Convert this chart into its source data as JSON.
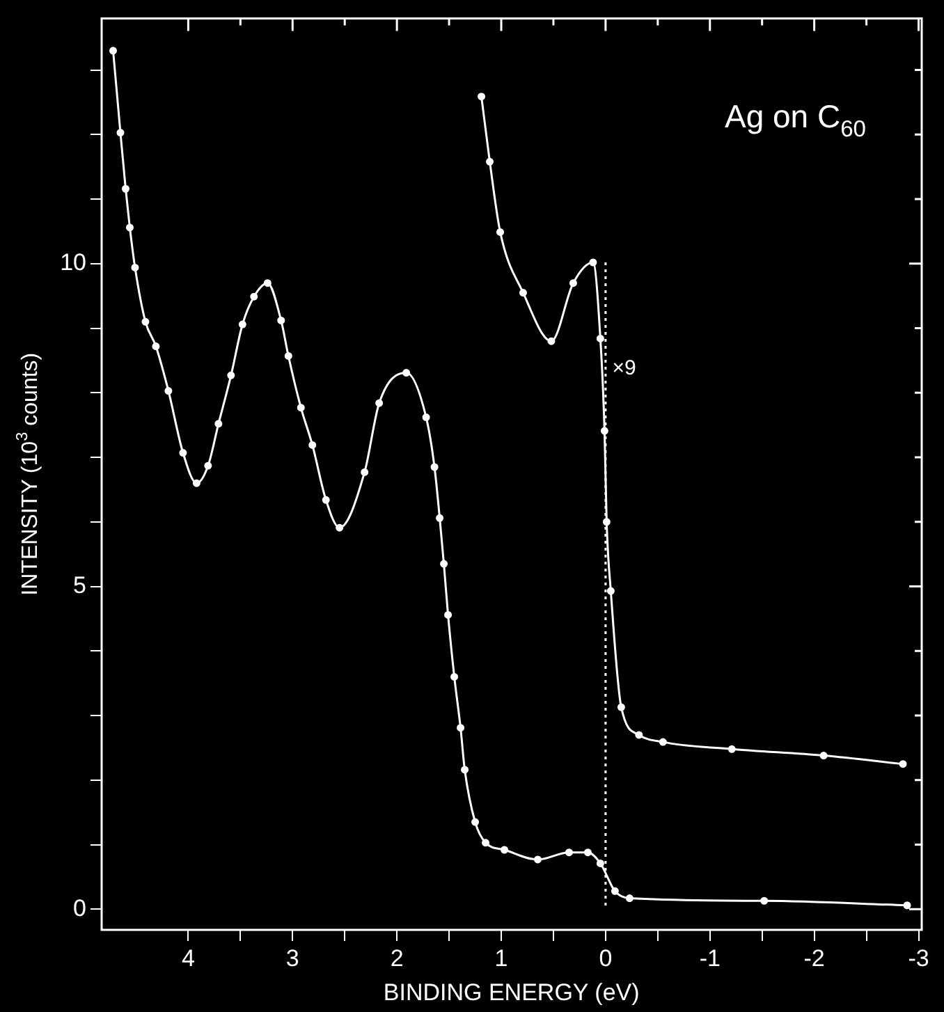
{
  "chart_data": {
    "type": "line",
    "title": "Ag on C$_{60}$",
    "xlabel": "BINDING ENERGY (eV)",
    "ylabel": "INTENSITY (10$^{3}$ counts)",
    "xlim": [
      4.83,
      -3.03
    ],
    "ylim": [
      -0.32,
      13.8
    ],
    "xticks": [
      4,
      {
        "value": 3.5,
        "label": null
      },
      3,
      {
        "value": 2.5,
        "label": null
      },
      2,
      {
        "value": 1.5,
        "label": null
      },
      1,
      {
        "value": 0.5,
        "label": null
      },
      0,
      {
        "value": -0.5,
        "label": null
      },
      -1,
      {
        "value": -1.5,
        "label": null
      },
      -2,
      {
        "value": -2.5,
        "label": null
      },
      -3
    ],
    "yticks": [
      0,
      {
        "value": 1,
        "label": null
      },
      {
        "value": 2,
        "label": null
      },
      {
        "value": 3,
        "label": null
      },
      {
        "value": 4,
        "label": null
      },
      5,
      {
        "value": 6,
        "label": null
      },
      {
        "value": 7,
        "label": null
      },
      {
        "value": 8,
        "label": null
      },
      {
        "value": 9,
        "label": null
      },
      10,
      {
        "value": 11,
        "label": null
      },
      {
        "value": 12,
        "label": null
      },
      {
        "value": 13,
        "label": null
      }
    ],
    "marker": "circle",
    "legend": false,
    "grid": false,
    "ref_lines": [
      {
        "axis": "x",
        "value": 0,
        "line_style": "dotted",
        "color": "#ffffff"
      }
    ],
    "series": [
      {
        "color": "#ffffff",
        "x": [
          4.72,
          4.65,
          4.6,
          4.56,
          4.51,
          4.41,
          4.31,
          4.19,
          4.05,
          3.92,
          3.81,
          3.71,
          3.59,
          3.48,
          3.37,
          3.24,
          3.11,
          3.04,
          2.92,
          2.81,
          2.68,
          2.55,
          2.31,
          2.17,
          1.91,
          1.72,
          1.64,
          1.59,
          1.55,
          1.51,
          1.45,
          1.39,
          1.35,
          1.25,
          1.15,
          0.97,
          0.65,
          0.35,
          0.17,
          0.05,
          -0.09,
          -0.23,
          -1.52,
          -2.89
        ],
        "values": [
          13.3,
          12.03,
          11.16,
          10.56,
          9.94,
          9.1,
          8.72,
          8.03,
          7.07,
          6.6,
          6.87,
          7.52,
          8.27,
          9.06,
          9.49,
          9.7,
          9.12,
          8.57,
          7.77,
          7.19,
          6.34,
          5.91,
          6.77,
          7.84,
          8.31,
          7.62,
          6.85,
          6.06,
          5.35,
          4.56,
          3.6,
          2.81,
          2.16,
          1.35,
          1.03,
          0.92,
          0.77,
          0.88,
          0.88,
          0.71,
          0.28,
          0.17,
          0.13,
          0.06
        ]
      },
      {
        "name": "×9",
        "color": "#ffffff",
        "x": [
          1.19,
          1.11,
          1.01,
          0.79,
          0.52,
          0.31,
          0.12,
          0.05,
          0.01,
          -0.01,
          -0.05,
          -0.15,
          -0.32,
          -0.55,
          -1.21,
          -2.09,
          -2.85
        ],
        "values": [
          12.59,
          11.58,
          10.49,
          9.55,
          8.8,
          9.7,
          10.02,
          8.84,
          7.41,
          6.0,
          4.93,
          3.13,
          2.7,
          2.59,
          2.48,
          2.38,
          2.25
        ]
      }
    ]
  }
}
